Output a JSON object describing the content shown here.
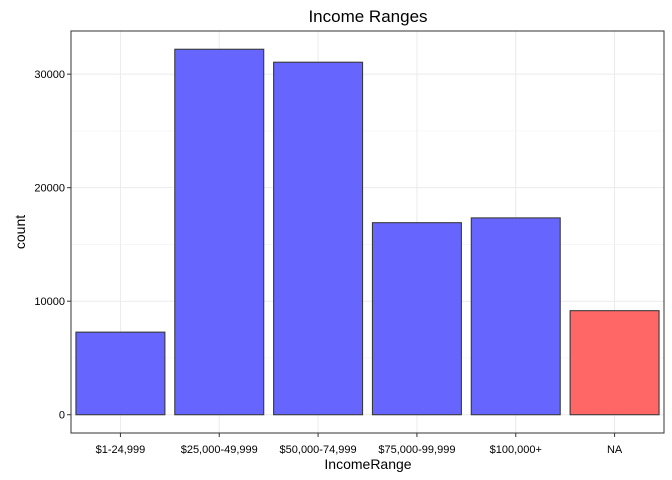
{
  "chart_data": {
    "type": "bar",
    "title": "Income Ranges",
    "xlabel": "IncomeRange",
    "ylabel": "count",
    "categories": [
      "$1-24,999",
      "$25,000-49,999",
      "$50,000-74,999",
      "$75,000-99,999",
      "$100,000+",
      "NA"
    ],
    "values": [
      7274,
      32192,
      31050,
      16916,
      17337,
      9165
    ],
    "bar_colors": [
      "#6666ff",
      "#6666ff",
      "#6666ff",
      "#6666ff",
      "#6666ff",
      "#ff6666"
    ],
    "ylim": [
      -1610,
      33800
    ],
    "yticks": [
      0,
      10000,
      20000,
      30000
    ],
    "ytick_labels": [
      "0",
      "10000",
      "20000",
      "30000"
    ],
    "grid": true,
    "legend": "none"
  }
}
